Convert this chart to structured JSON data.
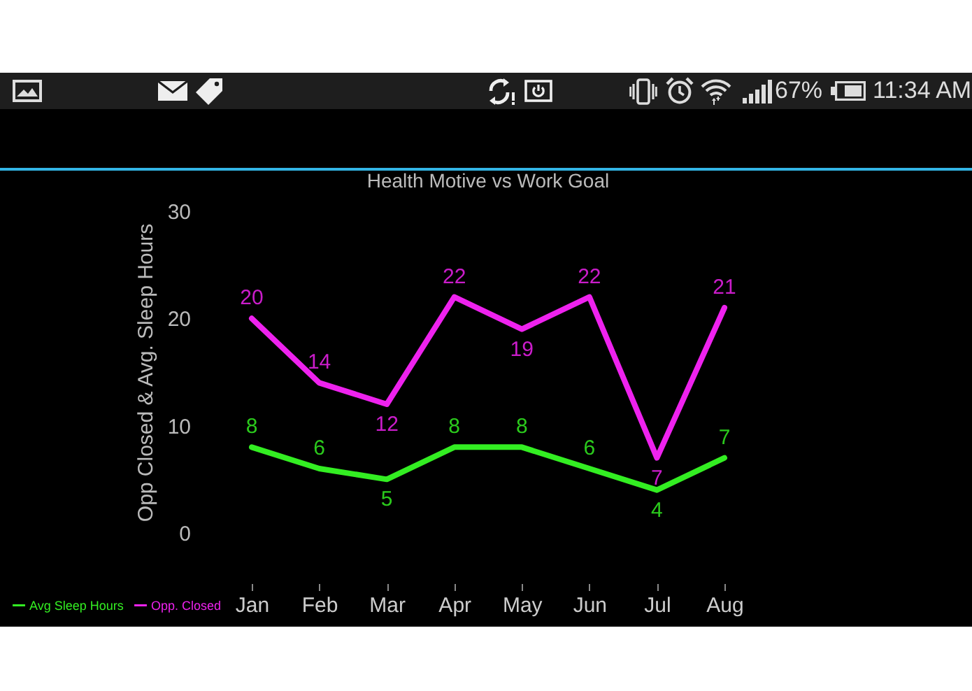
{
  "chart_data": {
    "type": "line",
    "title": "Health Motive vs Work Goal",
    "ylabel": "Opp Closed & Avg. Sleep Hours",
    "categories": [
      "Jan",
      "Feb",
      "Mar",
      "Apr",
      "May",
      "Jun",
      "Jul",
      "Aug"
    ],
    "series": [
      {
        "name": "Avg Sleep Hours",
        "color": "#33ee22",
        "values": [
          8,
          6,
          5,
          8,
          8,
          6,
          4,
          7
        ]
      },
      {
        "name": "Opp. Closed",
        "color": "#ee22ee",
        "values": [
          20,
          14,
          12,
          22,
          19,
          22,
          7,
          21
        ]
      }
    ],
    "ylim": [
      0,
      30
    ],
    "yticks": [
      0,
      10,
      20,
      30
    ],
    "grid": false,
    "legend": "bottom left",
    "data_labels": true,
    "annotations": [
      "67%",
      "11:34 AM"
    ]
  }
}
